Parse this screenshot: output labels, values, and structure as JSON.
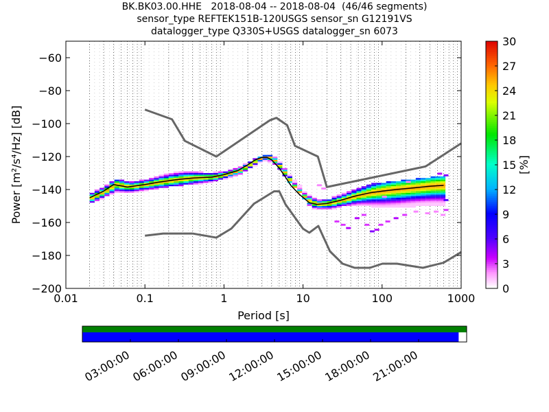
{
  "header": {
    "title_line1": "BK.BK03.00.HHE   2018-08-04 -- 2018-08-04  (46/46 segments)",
    "title_line2": "sensor_type REFTEK151B-120USGS sensor_sn G12191VS",
    "title_line3": "datalogger_type Q330S+USGS datalogger_sn 6073"
  },
  "chart_data": [
    {
      "type": "heatmap",
      "xlabel": "Period [s]",
      "ylabel": "Power [m²/s⁴/Hz] [dB]",
      "xscale": "log",
      "xlim": [
        0.01,
        1000
      ],
      "ylim": [
        -200,
        -50
      ],
      "xticks": [
        0.01,
        0.1,
        1,
        10,
        100,
        1000
      ],
      "xtick_labels": [
        "0.01",
        "0.1",
        "1",
        "10",
        "100",
        "1000"
      ],
      "yticks": [
        -200,
        -180,
        -160,
        -140,
        -120,
        -100,
        -80,
        -60
      ],
      "grid": "vertical dotted lines at log minor periods",
      "colorbar": {
        "label": "[%]",
        "range": [
          0,
          30
        ],
        "ticks": [
          0,
          3,
          6,
          9,
          12,
          15,
          18,
          21,
          24,
          27,
          30
        ]
      },
      "high_noise_model": {
        "x": [
          0.1,
          0.22,
          0.32,
          0.8,
          3.8,
          4.6,
          6.3,
          7.9,
          15.4,
          20,
          354.8,
          1000
        ],
        "y": [
          -91.5,
          -97.4,
          -110.5,
          -120,
          -98,
          -96.5,
          -101,
          -113.5,
          -120,
          -138.5,
          -126,
          -112
        ]
      },
      "low_noise_model": {
        "x": [
          0.1,
          0.17,
          0.4,
          0.8,
          1.24,
          2.4,
          4.3,
          5,
          6,
          10,
          12,
          15.6,
          21.9,
          31.6,
          45,
          70,
          101,
          154,
          328,
          600,
          1000
        ],
        "y": [
          -168,
          -166.7,
          -166.7,
          -169.2,
          -163.7,
          -148.6,
          -141.1,
          -141.1,
          -149,
          -163.8,
          -166.2,
          -162.1,
          -177.5,
          -185,
          -187.5,
          -187.5,
          -185,
          -185,
          -187.5,
          -184.4,
          -178
        ]
      },
      "median_curve": {
        "x": [
          0.02,
          0.03,
          0.04,
          0.06,
          0.1,
          0.15,
          0.25,
          0.4,
          0.7,
          1.0,
          1.5,
          2.0,
          2.5,
          3.0,
          3.5,
          4.0,
          5.0,
          6.0,
          7.0,
          9.0,
          12.0,
          15.0,
          20.0,
          30.0,
          45.0,
          70.0,
          100.0,
          150.0,
          250.0,
          400.0,
          600.0
        ],
        "y": [
          -145,
          -141,
          -137,
          -138.5,
          -137,
          -135.5,
          -134,
          -133,
          -132.5,
          -131,
          -128.5,
          -125,
          -122,
          -120.5,
          -120.5,
          -122,
          -127,
          -132.5,
          -137.5,
          -143,
          -148,
          -149,
          -148.5,
          -146.5,
          -144,
          -142,
          -141,
          -140,
          -139,
          -138,
          -137.5
        ]
      },
      "density_bands": [
        {
          "x": [
            0.02,
            0.03,
            0.04,
            0.06,
            0.1,
            0.2,
            0.3,
            0.5,
            0.7,
            1.0,
            1.5,
            2.0,
            3.0,
            4.0,
            5.0,
            6.0,
            8.0,
            10.0,
            12.0,
            15.0,
            20.0,
            30.0,
            50.0,
            70.0,
            100.0,
            150.0,
            250.0,
            400.0,
            600.0
          ],
          "top": [
            -142,
            -138,
            -134,
            -136,
            -134,
            -130,
            -129,
            -130,
            -130,
            -129,
            -126,
            -123,
            -119,
            -120,
            -125,
            -130,
            -136,
            -142,
            -145,
            -147,
            -146,
            -143,
            -139,
            -137,
            -136,
            -135,
            -134,
            -133,
            -132
          ],
          "bottom": [
            -148,
            -144,
            -142,
            -142,
            -140,
            -138,
            -137,
            -136,
            -135,
            -133,
            -130,
            -127,
            -122,
            -124,
            -129,
            -135,
            -140,
            -146,
            -151,
            -152,
            -152,
            -150,
            -149,
            -150,
            -151,
            -151,
            -150,
            -150,
            -150
          ]
        }
      ],
      "outlier_points": [
        {
          "x": 15,
          "y": -138,
          "pct": 2
        },
        {
          "x": 17,
          "y": -140,
          "pct": 2
        },
        {
          "x": 25,
          "y": -160,
          "pct": 3
        },
        {
          "x": 30,
          "y": -162,
          "pct": 3
        },
        {
          "x": 35,
          "y": -164,
          "pct": 4
        },
        {
          "x": 45,
          "y": -158,
          "pct": 4
        },
        {
          "x": 55,
          "y": -156,
          "pct": 3
        },
        {
          "x": 60,
          "y": -162,
          "pct": 3
        },
        {
          "x": 70,
          "y": -166,
          "pct": 5
        },
        {
          "x": 80,
          "y": -165,
          "pct": 4
        },
        {
          "x": 90,
          "y": -162,
          "pct": 3
        },
        {
          "x": 110,
          "y": -160,
          "pct": 3
        },
        {
          "x": 140,
          "y": -158,
          "pct": 4
        },
        {
          "x": 180,
          "y": -156,
          "pct": 3
        },
        {
          "x": 250,
          "y": -154,
          "pct": 2
        },
        {
          "x": 350,
          "y": -155,
          "pct": 2
        },
        {
          "x": 450,
          "y": -154,
          "pct": 2
        },
        {
          "x": 550,
          "y": -156,
          "pct": 2
        },
        {
          "x": 600,
          "y": -153,
          "pct": 3
        },
        {
          "x": 600,
          "y": -147,
          "pct": 6
        },
        {
          "x": 600,
          "y": -132,
          "pct": 5
        },
        {
          "x": 500,
          "y": -131,
          "pct": 4
        },
        {
          "x": 100,
          "y": -145,
          "pct": 2
        },
        {
          "x": 200,
          "y": -136,
          "pct": 2
        }
      ]
    },
    {
      "type": "timeline",
      "xtick_labels": [
        "03:00:00",
        "06:00:00",
        "09:00:00",
        "12:00:00",
        "15:00:00",
        "18:00:00",
        "21:00:00"
      ],
      "xtick_hours": [
        3,
        6,
        9,
        12,
        15,
        18,
        21
      ],
      "range_hours": [
        0,
        24
      ],
      "available_data": {
        "start": 0,
        "end": 24,
        "color": "#008000"
      },
      "used_data": {
        "start": 0,
        "end": 23.5,
        "color": "#0000ff"
      }
    }
  ]
}
